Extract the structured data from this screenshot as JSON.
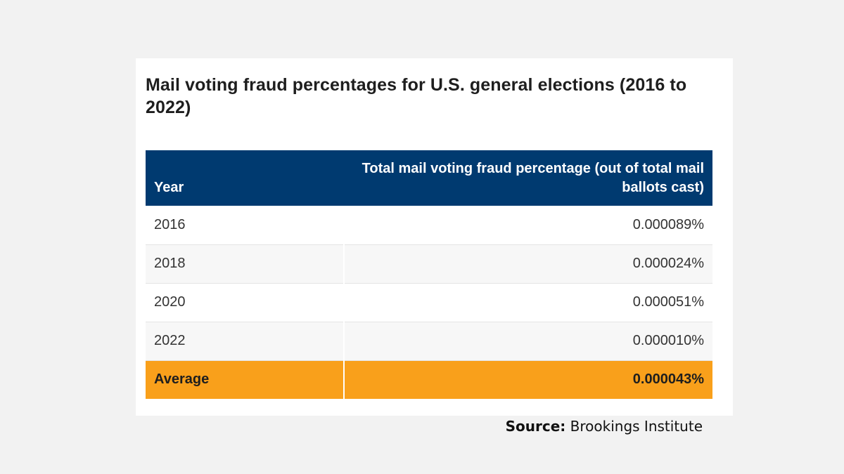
{
  "chart_data": {
    "type": "table",
    "title": "Mail voting fraud percentages for U.S. general elections (2016 to 2022)",
    "columns": [
      "Year",
      "Total mail voting fraud percentage (out of total mail ballots cast)"
    ],
    "rows": [
      {
        "year": "2016",
        "value": "0.000089%"
      },
      {
        "year": "2018",
        "value": "0.000024%"
      },
      {
        "year": "2020",
        "value": "0.000051%"
      },
      {
        "year": "2022",
        "value": "0.000010%"
      }
    ],
    "summary": {
      "label": "Average",
      "value": "0.000043%"
    }
  },
  "source": {
    "label": "Source:",
    "text": "Brookings Institute"
  },
  "colors": {
    "header_bg": "#003a70",
    "highlight_bg": "#f9a01b",
    "page_bg": "#f2f2f2"
  }
}
